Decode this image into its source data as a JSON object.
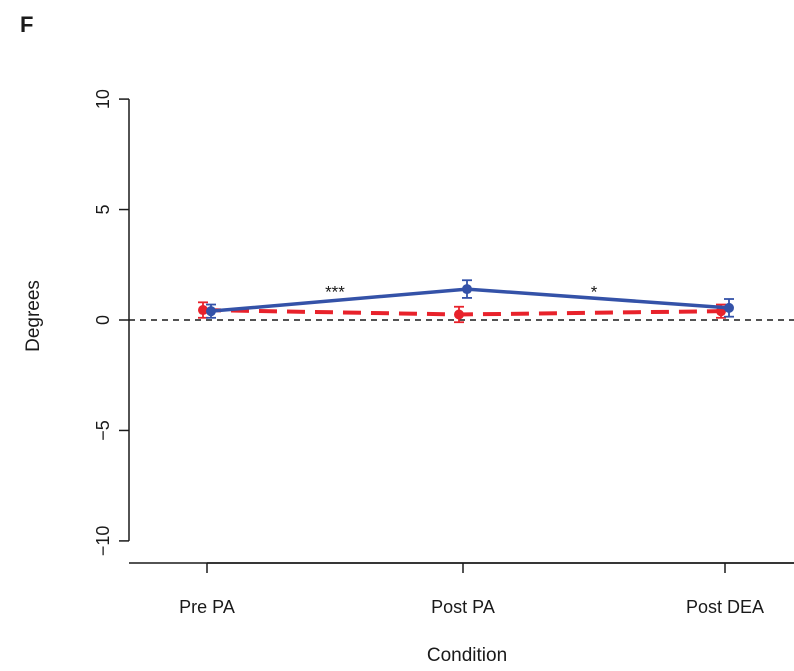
{
  "panel_label": "F",
  "chart_data": {
    "type": "line",
    "xlabel": "Condition",
    "ylabel": "Degrees",
    "categories": [
      "Pre PA",
      "Post PA",
      "Post DEA"
    ],
    "ylim": [
      -11,
      11
    ],
    "yticks": [
      -10,
      -5,
      0,
      5,
      10
    ],
    "yticklabels": [
      "−10",
      "−5",
      "0",
      "5",
      "10"
    ],
    "reference_line": 0,
    "grid": false,
    "legend": "none",
    "series": [
      {
        "color": "#3452a8",
        "line_style": "solid",
        "values": [
          0.4,
          1.4,
          0.55
        ],
        "err": [
          0.3,
          0.4,
          0.4
        ]
      },
      {
        "color": "#e8222b",
        "line_style": "dashed",
        "values": [
          0.45,
          0.25,
          0.4
        ],
        "err": [
          0.35,
          0.35,
          0.3
        ]
      }
    ],
    "annotations": [
      {
        "text": "***",
        "x_between": [
          0,
          1
        ],
        "y": 1.3
      },
      {
        "text": "*",
        "x_between": [
          1,
          2
        ],
        "y": 1.3
      }
    ]
  }
}
